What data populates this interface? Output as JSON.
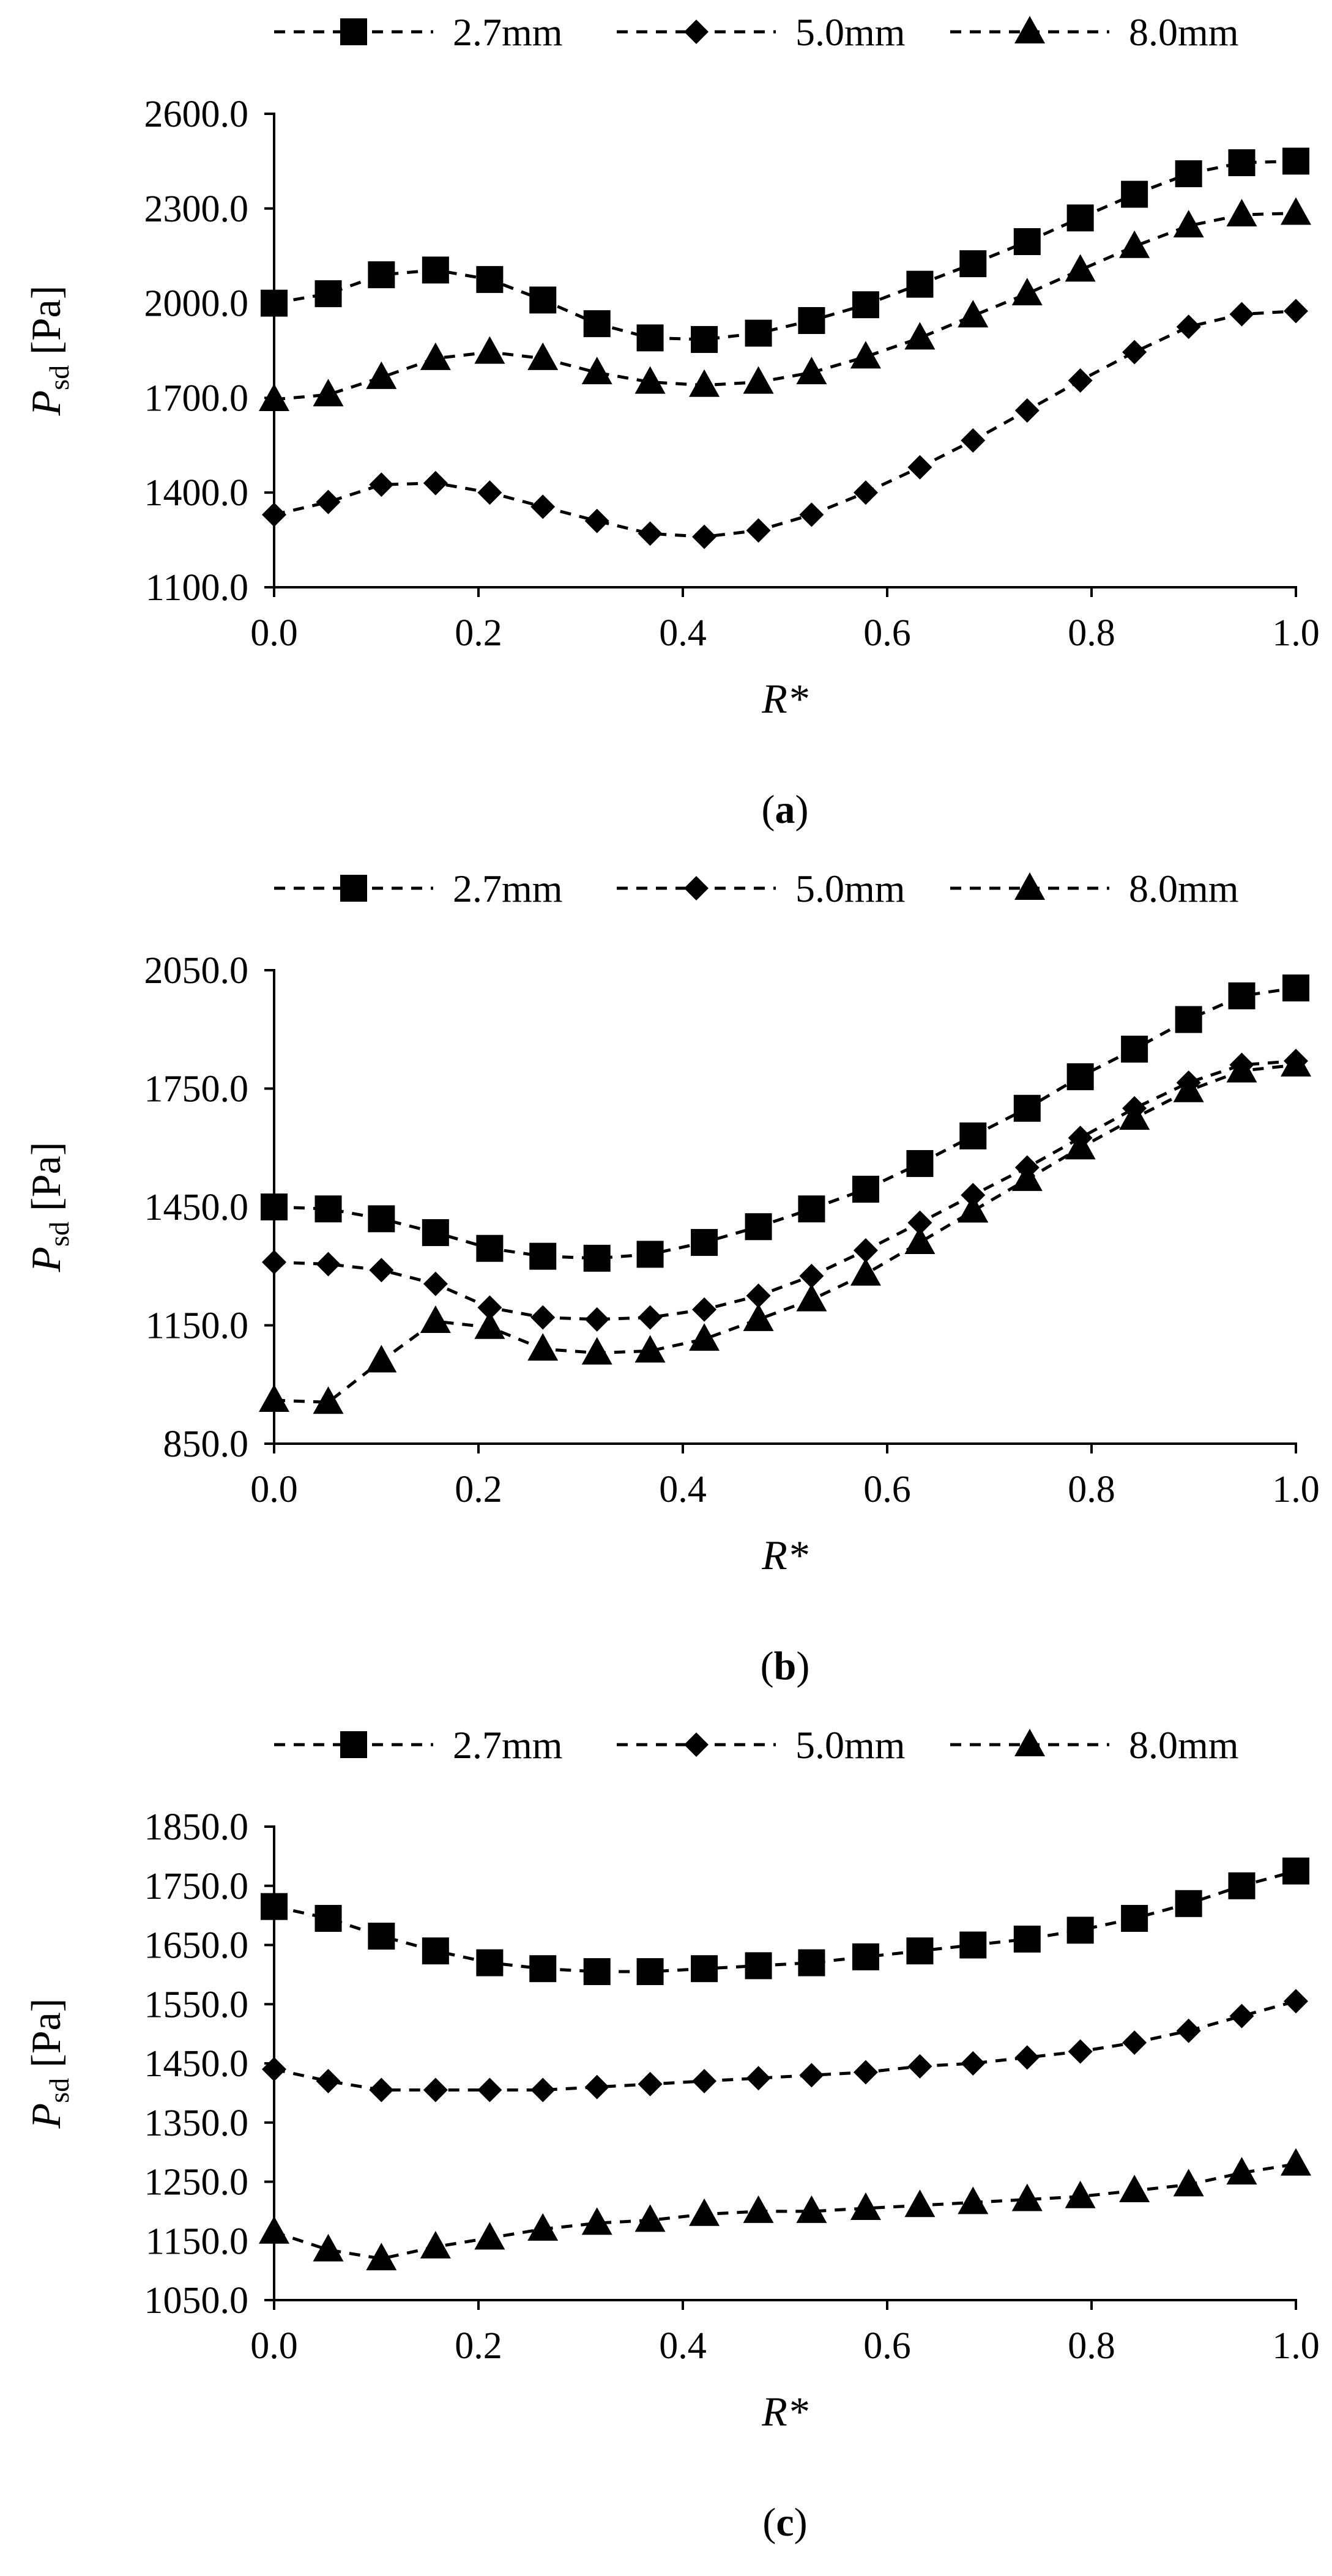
{
  "chart_data": [
    {
      "type": "line",
      "panel": "a",
      "caption": "a",
      "xlabel": "R*",
      "ylabel_main": "P",
      "ylabel_sub": "sd",
      "ylabel_unit": "[Pa]",
      "xlim": [
        0.0,
        1.0
      ],
      "ylim": [
        1100.0,
        2600.0
      ],
      "xticks": [
        "0.0",
        "0.2",
        "0.4",
        "0.6",
        "0.8",
        "1.0"
      ],
      "yticks": [
        "1100.0",
        "1400.0",
        "1700.0",
        "2000.0",
        "2300.0",
        "2600.0"
      ],
      "legend_position": "top",
      "x": [
        0.0,
        0.053,
        0.105,
        0.158,
        0.211,
        0.263,
        0.316,
        0.368,
        0.421,
        0.474,
        0.526,
        0.579,
        0.632,
        0.684,
        0.737,
        0.789,
        0.842,
        0.895,
        0.947,
        1.0
      ],
      "series": [
        {
          "name": "2.7mm",
          "marker": "square",
          "values": [
            2000,
            2030,
            2090,
            2105,
            2075,
            2010,
            1935,
            1890,
            1885,
            1905,
            1945,
            1995,
            2060,
            2125,
            2195,
            2270,
            2345,
            2410,
            2445,
            2450
          ]
        },
        {
          "name": "5.0mm",
          "marker": "diamond",
          "values": [
            1330,
            1370,
            1425,
            1430,
            1400,
            1355,
            1310,
            1270,
            1260,
            1280,
            1330,
            1400,
            1480,
            1565,
            1660,
            1755,
            1845,
            1925,
            1965,
            1975
          ]
        },
        {
          "name": "8.0mm",
          "marker": "triangle",
          "values": [
            1695,
            1710,
            1765,
            1825,
            1845,
            1825,
            1780,
            1750,
            1740,
            1750,
            1780,
            1830,
            1890,
            1960,
            2030,
            2105,
            2180,
            2245,
            2280,
            2285
          ]
        }
      ]
    },
    {
      "type": "line",
      "panel": "b",
      "caption": "b",
      "xlabel": "R*",
      "ylabel_main": "P",
      "ylabel_sub": "sd",
      "ylabel_unit": "[Pa]",
      "xlim": [
        0.0,
        1.0
      ],
      "ylim": [
        850.0,
        2050.0
      ],
      "xticks": [
        "0.0",
        "0.2",
        "0.4",
        "0.6",
        "0.8",
        "1.0"
      ],
      "yticks": [
        "850.0",
        "1150.0",
        "1450.0",
        "1750.0",
        "2050.0"
      ],
      "legend_position": "top",
      "x": [
        0.0,
        0.053,
        0.105,
        0.158,
        0.211,
        0.263,
        0.316,
        0.368,
        0.421,
        0.474,
        0.526,
        0.579,
        0.632,
        0.684,
        0.737,
        0.789,
        0.842,
        0.895,
        0.947,
        1.0
      ],
      "series": [
        {
          "name": "2.7mm",
          "marker": "square",
          "values": [
            1450,
            1445,
            1420,
            1385,
            1345,
            1325,
            1320,
            1330,
            1360,
            1400,
            1445,
            1495,
            1560,
            1630,
            1700,
            1780,
            1850,
            1925,
            1985,
            2005
          ]
        },
        {
          "name": "5.0mm",
          "marker": "diamond",
          "values": [
            1310,
            1305,
            1290,
            1255,
            1195,
            1170,
            1165,
            1170,
            1190,
            1225,
            1275,
            1340,
            1410,
            1480,
            1550,
            1625,
            1700,
            1765,
            1810,
            1820
          ]
        },
        {
          "name": "8.0mm",
          "marker": "triangle",
          "values": [
            960,
            955,
            1060,
            1160,
            1145,
            1090,
            1080,
            1085,
            1115,
            1165,
            1215,
            1280,
            1360,
            1440,
            1520,
            1600,
            1675,
            1745,
            1795,
            1810
          ]
        }
      ]
    },
    {
      "type": "line",
      "panel": "c",
      "caption": "c",
      "xlabel": "R*",
      "ylabel_main": "P",
      "ylabel_sub": "sd",
      "ylabel_unit": "[Pa]",
      "xlim": [
        0.0,
        1.0
      ],
      "ylim": [
        1050.0,
        1850.0
      ],
      "xticks": [
        "0.0",
        "0.2",
        "0.4",
        "0.6",
        "0.8",
        "1.0"
      ],
      "yticks": [
        "1050.0",
        "1150.0",
        "1250.0",
        "1350.0",
        "1450.0",
        "1550.0",
        "1650.0",
        "1750.0",
        "1850.0"
      ],
      "legend_position": "top",
      "x": [
        0.0,
        0.053,
        0.105,
        0.158,
        0.211,
        0.263,
        0.316,
        0.368,
        0.421,
        0.474,
        0.526,
        0.579,
        0.632,
        0.684,
        0.737,
        0.789,
        0.842,
        0.895,
        0.947,
        1.0
      ],
      "series": [
        {
          "name": "2.7mm",
          "marker": "square",
          "values": [
            1715,
            1695,
            1665,
            1640,
            1620,
            1610,
            1605,
            1605,
            1610,
            1615,
            1620,
            1630,
            1640,
            1650,
            1660,
            1675,
            1695,
            1720,
            1750,
            1775
          ]
        },
        {
          "name": "5.0mm",
          "marker": "diamond",
          "values": [
            1440,
            1420,
            1405,
            1405,
            1405,
            1405,
            1410,
            1415,
            1420,
            1425,
            1430,
            1435,
            1445,
            1450,
            1460,
            1470,
            1485,
            1505,
            1530,
            1555
          ]
        },
        {
          "name": "8.0mm",
          "marker": "triangle",
          "values": [
            1165,
            1135,
            1120,
            1140,
            1155,
            1170,
            1180,
            1185,
            1195,
            1200,
            1200,
            1205,
            1210,
            1215,
            1220,
            1225,
            1235,
            1245,
            1265,
            1280
          ]
        }
      ]
    }
  ]
}
